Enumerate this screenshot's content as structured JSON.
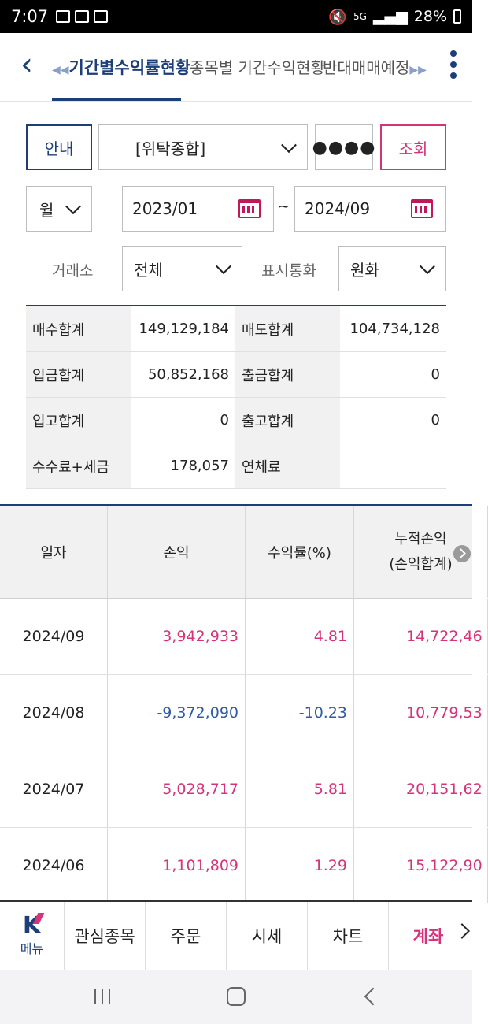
{
  "statusbar": {
    "time": "7:07",
    "battery": "28%",
    "network": "5G"
  },
  "tabs": {
    "active": "기간별수익률현황",
    "tab2": "종목별 기간수익현황",
    "tab3": "반대매매예정"
  },
  "filters": {
    "info_label": "안내",
    "account": "[위탁종합]",
    "password_mask": "●●●●",
    "query_label": "조회",
    "period": "월",
    "start_date": "2023/01",
    "tilde": "~",
    "end_date": "2024/09",
    "exchange_label": "거래소",
    "exchange_value": "전체",
    "currency_label": "표시통화",
    "currency_value": "원화"
  },
  "summary": [
    {
      "k1": "매수합계",
      "v1": "149,129,184",
      "k2": "매도합계",
      "v2": "104,734,128"
    },
    {
      "k1": "입금합계",
      "v1": "50,852,168",
      "k2": "출금합계",
      "v2": "0"
    },
    {
      "k1": "입고합계",
      "v1": "0",
      "k2": "출고합계",
      "v2": "0"
    },
    {
      "k1": "수수료+세금",
      "v1": "178,057",
      "k2": "연체료",
      "v2": ""
    }
  ],
  "table": {
    "headers": {
      "date": "일자",
      "pnl": "손익",
      "rate": "수익률(%)",
      "cum1": "누적손익",
      "cum2": "(손익합계)"
    },
    "rows": [
      {
        "date": "2024/09",
        "pnl": "3,942,933",
        "rate": "4.81",
        "cum": "14,722,46"
      },
      {
        "date": "2024/08",
        "pnl": "-9,372,090",
        "rate": "-10.23",
        "cum": "10,779,53"
      },
      {
        "date": "2024/07",
        "pnl": "5,028,717",
        "rate": "5.81",
        "cum": "20,151,62"
      },
      {
        "date": "2024/06",
        "pnl": "1,101,809",
        "rate": "1.29",
        "cum": "15,122,90"
      }
    ]
  },
  "bottomnav": {
    "menu": "메뉴",
    "watch": "관심종목",
    "order": "주문",
    "quote": "시세",
    "chart": "차트",
    "account": "계좌"
  },
  "colors": {
    "navy": "#1c3f7a",
    "pink": "#d6337a",
    "blue_negative": "#2e5aa8"
  }
}
